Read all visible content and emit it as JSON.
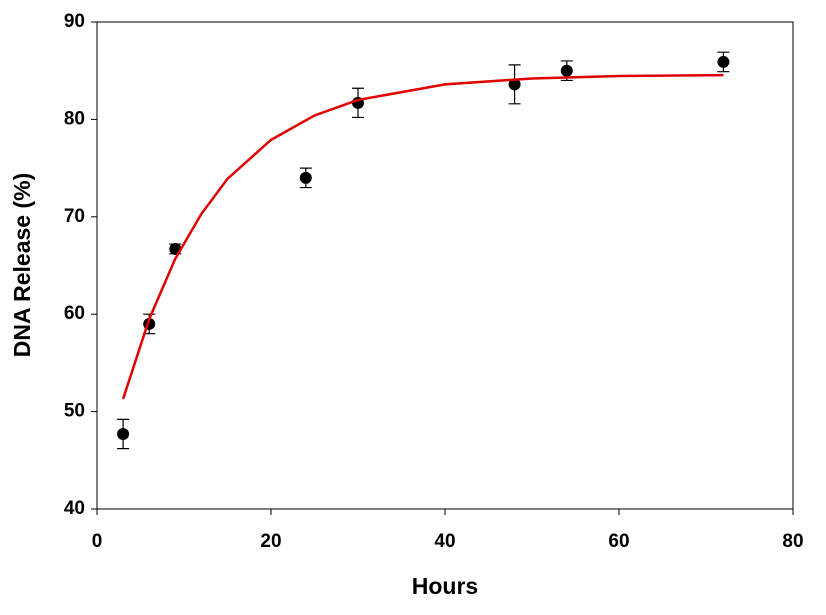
{
  "chart_data": {
    "type": "scatter",
    "x_label": "Hours",
    "y_label": "DNA Release (%)",
    "xlim": [
      0,
      80
    ],
    "xticks": [
      0,
      20,
      40,
      60,
      80
    ],
    "ylim": [
      40,
      90
    ],
    "yticks": [
      40,
      50,
      60,
      70,
      80,
      90
    ],
    "grid": false,
    "series": [
      {
        "x": [
          3,
          6,
          9,
          24,
          30,
          48,
          54,
          72
        ],
        "values": [
          47.7,
          59.0,
          66.7,
          74.0,
          81.7,
          83.6,
          85.0,
          85.9
        ],
        "errors": [
          1.5,
          1.0,
          0.5,
          1.0,
          1.5,
          2.0,
          1.0,
          1.0
        ],
        "color": "#000000"
      },
      {
        "type": "line",
        "x": [
          3,
          6,
          9,
          12,
          15,
          20,
          25,
          30,
          40,
          50,
          60,
          72
        ],
        "values": [
          51.3,
          59.5,
          65.7,
          70.3,
          73.9,
          77.9,
          80.4,
          82.0,
          83.6,
          84.2,
          84.45,
          84.55
        ],
        "color": "#e00000"
      }
    ]
  }
}
